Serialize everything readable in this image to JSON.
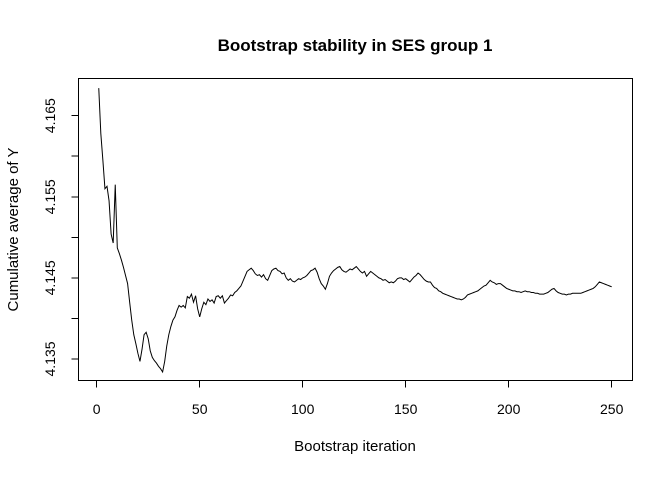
{
  "colors": {
    "background": "#ffffff",
    "line": "#000000",
    "text": "#000000",
    "box": "#000000"
  },
  "chart_data": {
    "type": "line",
    "title": "Bootstrap stability in SES group 1",
    "xlabel": "Bootstrap iteration",
    "ylabel": "Cumulative average of Y",
    "xlim": [
      0,
      250
    ],
    "ylim": [
      4.132,
      4.17
    ],
    "grid": false,
    "legend": false,
    "x_ticks": [
      0,
      50,
      100,
      150,
      200,
      250
    ],
    "x_tick_labels": [
      "0",
      "50",
      "100",
      "150",
      "200",
      "250"
    ],
    "y_ticks": [
      4.135,
      4.14,
      4.145,
      4.15,
      4.155,
      4.16,
      4.165
    ],
    "y_tick_labels": [
      "4.135",
      "",
      "4.145",
      "",
      "4.155",
      "",
      "4.165"
    ],
    "x_start": 1,
    "x_step": 1,
    "values": [
      4.1684,
      4.1628,
      4.1595,
      4.156,
      4.1563,
      4.1545,
      4.1504,
      4.1493,
      4.1565,
      4.1487,
      4.148,
      4.1472,
      4.1463,
      4.1453,
      4.1443,
      4.142,
      4.1398,
      4.138,
      4.1369,
      4.1357,
      4.1347,
      4.1362,
      4.138,
      4.1383,
      4.1375,
      4.136,
      4.1352,
      4.1348,
      4.1345,
      4.1341,
      4.1338,
      4.1334,
      4.1347,
      4.1366,
      4.138,
      4.139,
      4.1398,
      4.1402,
      4.141,
      4.1416,
      4.1414,
      4.1416,
      4.1413,
      4.1427,
      4.1425,
      4.143,
      4.142,
      4.1428,
      4.1412,
      4.1402,
      4.1412,
      4.142,
      4.1417,
      4.1424,
      4.1421,
      4.1423,
      4.1419,
      4.1427,
      4.1428,
      4.1425,
      4.1428,
      4.1419,
      4.1422,
      4.1425,
      4.1429,
      4.1428,
      4.1432,
      4.1434,
      4.1437,
      4.144,
      4.1446,
      4.1452,
      4.1458,
      4.146,
      4.1462,
      4.1459,
      4.1455,
      4.1453,
      4.1454,
      4.1451,
      4.1454,
      4.1449,
      4.1447,
      4.1453,
      4.1459,
      4.1461,
      4.1462,
      4.1459,
      4.1458,
      4.1455,
      4.1456,
      4.145,
      4.1447,
      4.1449,
      4.1446,
      4.1445,
      4.1447,
      4.1449,
      4.1448,
      4.145,
      4.1451,
      4.1453,
      4.1456,
      4.1459,
      4.146,
      4.1462,
      4.1457,
      4.1449,
      4.1443,
      4.144,
      4.1436,
      4.1443,
      4.1452,
      4.1456,
      4.1459,
      4.1461,
      4.1463,
      4.1464,
      4.146,
      4.1458,
      4.1457,
      4.1459,
      4.1461,
      4.146,
      4.1462,
      4.1464,
      4.1461,
      4.1458,
      4.1456,
      4.1458,
      4.1452,
      4.1455,
      4.1458,
      4.1456,
      4.1454,
      4.1452,
      4.145,
      4.1449,
      4.1447,
      4.1448,
      4.1446,
      4.1444,
      4.1445,
      4.1444,
      4.1446,
      4.1449,
      4.145,
      4.145,
      4.1448,
      4.1449,
      4.1447,
      4.1445,
      4.1448,
      4.1451,
      4.1453,
      4.1456,
      4.1454,
      4.1451,
      4.1448,
      4.1446,
      4.1445,
      4.1445,
      4.1441,
      4.1438,
      4.1437,
      4.1434,
      4.1433,
      4.1431,
      4.143,
      4.1429,
      4.1428,
      4.1427,
      4.1426,
      4.1425,
      4.1424,
      4.1424,
      4.1423,
      4.1424,
      4.1426,
      4.1429,
      4.143,
      4.1431,
      4.1432,
      4.1433,
      4.1434,
      4.1436,
      4.1438,
      4.144,
      4.1441,
      4.1444,
      4.1447,
      4.1445,
      4.1444,
      4.1442,
      4.1443,
      4.1443,
      4.1441,
      4.1439,
      4.1437,
      4.1436,
      4.1435,
      4.1434,
      4.1434,
      4.1433,
      4.1433,
      4.1432,
      4.1433,
      4.1434,
      4.1433,
      4.1433,
      4.1432,
      4.1432,
      4.1431,
      4.1431,
      4.143,
      4.143,
      4.143,
      4.1431,
      4.1432,
      4.1434,
      4.1436,
      4.1437,
      4.1434,
      4.1432,
      4.1431,
      4.143,
      4.143,
      4.1429,
      4.143,
      4.143,
      4.1431,
      4.1431,
      4.1431,
      4.1431,
      4.1431,
      4.1432,
      4.1433,
      4.1434,
      4.1435,
      4.1436,
      4.1437,
      4.1439,
      4.1442,
      4.1445,
      4.1444,
      4.1443,
      4.1442,
      4.1441,
      4.144,
      4.1439
    ]
  }
}
